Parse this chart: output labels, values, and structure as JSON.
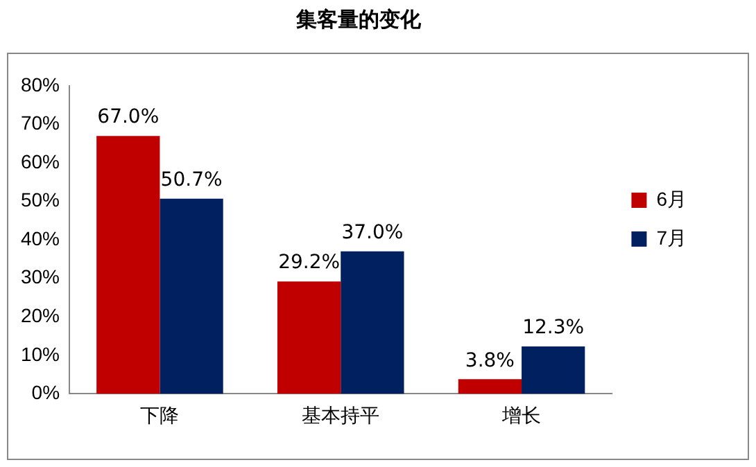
{
  "chart_data": {
    "type": "bar",
    "title": "集客量的变化",
    "categories": [
      "下降",
      "基本持平",
      "增长"
    ],
    "series": [
      {
        "name": "6月",
        "color": "#c00000",
        "values": [
          67.0,
          29.2,
          3.8
        ],
        "value_labels": [
          "67.0%",
          "29.2%",
          "3.8%"
        ]
      },
      {
        "name": "7月",
        "color": "#002060",
        "values": [
          50.7,
          37.0,
          12.3
        ],
        "value_labels": [
          "50.7%",
          "37.0%",
          "12.3%"
        ]
      }
    ],
    "ylim": [
      0,
      80
    ],
    "yticks": [
      {
        "value": 0,
        "label": "0%"
      },
      {
        "value": 10,
        "label": "10%"
      },
      {
        "value": 20,
        "label": "20%"
      },
      {
        "value": 30,
        "label": "30%"
      },
      {
        "value": 40,
        "label": "40%"
      },
      {
        "value": 50,
        "label": "50%"
      },
      {
        "value": 60,
        "label": "60%"
      },
      {
        "value": 70,
        "label": "70%"
      },
      {
        "value": 80,
        "label": "80%"
      }
    ],
    "grid": false,
    "legend": "right"
  }
}
